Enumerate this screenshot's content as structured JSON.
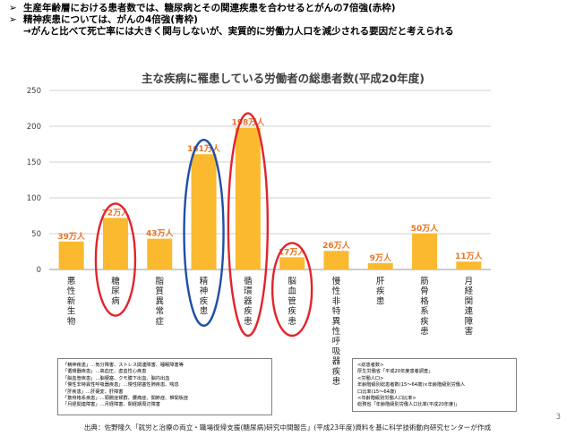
{
  "slide": {
    "bullets": [
      {
        "mark": "➢",
        "text": "生産年齢層における患者数では、糖尿病とその関連疾患を合わせるとがんの7倍強(赤枠)"
      },
      {
        "mark": "➢",
        "text": "精神疾患については、がんの4倍強(青枠)"
      },
      {
        "mark": "",
        "text": "→がんと比べて死亡率には大きく関与しないが、実質的に労働力人口を減少される要因だと考えられる"
      }
    ],
    "page_number": "3",
    "source": "出典：佐野隆久「就労と治療の両立・職場復帰支援(糖尿病)研究中間報告」(平成23年度)資料を基に科学技術動向研究センターが作成"
  },
  "legend_left": [
    "「精神疾患」…気分障害、ストレス関連障害、睡眠障害等",
    "「循環器疾患」…高血圧、虚血性心疾患",
    "「脳血管疾患」…脳梗塞、クモ膜下出血、脳内出血",
    "「慢性非特異性呼吸器疾患」…慢性閉塞性肺疾患、喘息",
    "「肝疾患」…肝硬変、肝障害",
    "「筋骨格系疾患」…頸腕症候群、腰痛症、関節症、椎間板症",
    "「月経関連障害」…月経障害、閉経期周辺障害"
  ],
  "legend_right": [
    "<総患者数>",
    "厚生労働省「平成20年度患者調査」",
    "<労働人口>",
    "年齢階級別総患者数(15〜64歳)×年齢階級別労働人",
    "口比率(15〜64歳)",
    "<年齢階級別労働人口比率>",
    "総務省「年齢階級別労働人口比率(平成20年度)」"
  ],
  "colors": {
    "bar": "#fbb92f",
    "label": "#e8731f",
    "red": "#e0252b",
    "blue": "#1f4fa8",
    "grid": "#d0d0d0"
  },
  "chart_data": {
    "type": "bar",
    "title": "主な疾病に罹患している労働者の総患者数(平成20年度)",
    "categories": [
      "悪性新生物",
      "糖尿病",
      "脂質異常症",
      "精神疾患",
      "循環器疾患",
      "脳血管疾患",
      "慢性非特異性呼吸器疾患",
      "肝疾患",
      "筋骨格系疾患",
      "月経関連障害"
    ],
    "values": [
      39,
      72,
      43,
      161,
      198,
      17,
      26,
      9,
      50,
      11
    ],
    "data_labels": [
      "39万人",
      "72万人",
      "43万人",
      "161万人",
      "198万人",
      "17万人",
      "26万人",
      "9万人",
      "50万人",
      "11万人"
    ],
    "ylim": [
      0,
      250
    ],
    "yticks": [
      0,
      50,
      100,
      150,
      200,
      250
    ],
    "grid": true,
    "highlight": {
      "red": [
        "糖尿病",
        "循環器疾患",
        "脳血管疾患"
      ],
      "blue": [
        "精神疾患"
      ]
    }
  }
}
